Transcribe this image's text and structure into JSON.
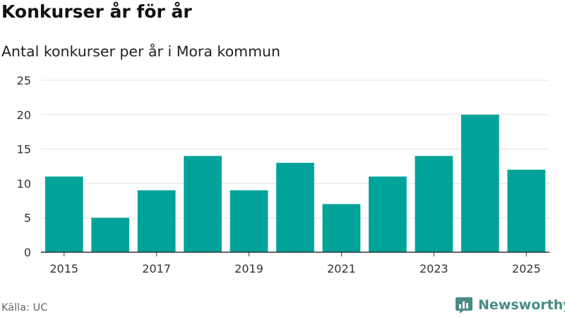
{
  "title": "Konkurser år för år",
  "subtitle": "Antal konkurser per år i Mora kommun",
  "source": "Källa: UC",
  "brand": {
    "name": "Newsworthy",
    "icon": "newsworthy-logo-icon"
  },
  "colors": {
    "bar": "#00a39a",
    "grid": "#e3e3e3",
    "axis": "#333333",
    "brand": "#4a8a8a"
  },
  "chart_data": {
    "type": "bar",
    "title": "Konkurser år för år",
    "subtitle": "Antal konkurser per år i Mora kommun",
    "xlabel": "",
    "ylabel": "",
    "categories": [
      2015,
      2016,
      2017,
      2018,
      2019,
      2020,
      2021,
      2022,
      2023,
      2024,
      2025
    ],
    "values": [
      11,
      5,
      9,
      14,
      9,
      13,
      7,
      11,
      14,
      20,
      12
    ],
    "ylim": [
      0,
      25
    ],
    "yticks": [
      0,
      5,
      10,
      15,
      20,
      25
    ],
    "xtick_labels": [
      "2015",
      "2017",
      "2019",
      "2021",
      "2023",
      "2025"
    ],
    "grid": true,
    "legend": "none"
  }
}
